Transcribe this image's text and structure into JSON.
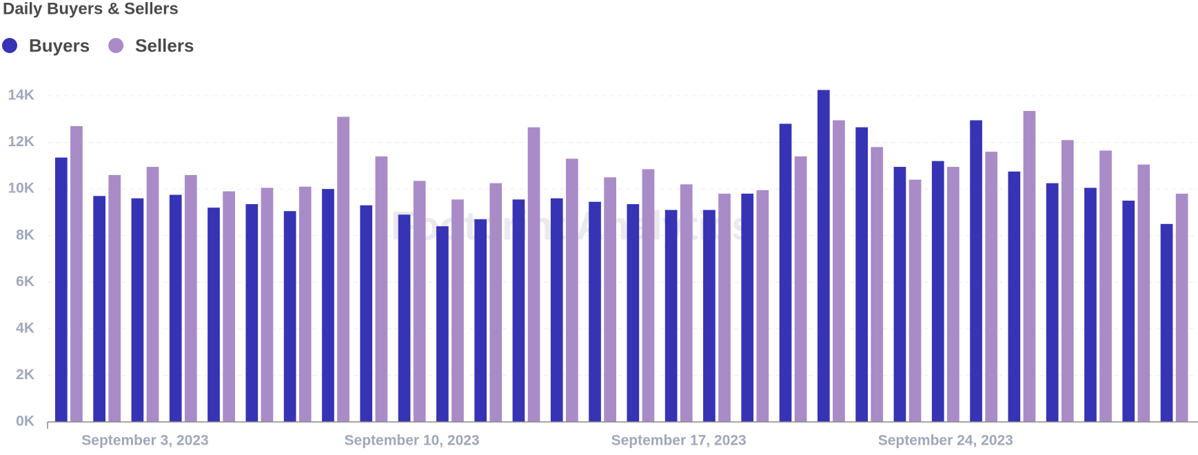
{
  "chart_data": {
    "type": "bar",
    "title": "Daily Buyers & Sellers",
    "watermark": "Footprint Analytics",
    "categories": [
      null,
      null,
      "September 3, 2023",
      null,
      null,
      null,
      null,
      null,
      null,
      "September 10, 2023",
      null,
      null,
      null,
      null,
      null,
      null,
      "September 17, 2023",
      null,
      null,
      null,
      null,
      null,
      null,
      "September 24, 2023",
      null,
      null,
      null,
      null,
      null,
      null
    ],
    "series": [
      {
        "name": "Buyers",
        "color": "#3633b5",
        "values": [
          11350,
          9700,
          9600,
          9750,
          9200,
          9350,
          9050,
          10000,
          9300,
          8900,
          8400,
          8700,
          9550,
          9600,
          9450,
          9350,
          9100,
          9100,
          9800,
          12800,
          14250,
          12650,
          10950,
          11200,
          12950,
          10750,
          10250,
          10050,
          9500,
          8500
        ]
      },
      {
        "name": "Sellers",
        "color": "#a98bc8",
        "values": [
          12700,
          10600,
          10950,
          10600,
          9900,
          10050,
          10100,
          13100,
          11400,
          10350,
          9550,
          10250,
          12650,
          11300,
          10500,
          10850,
          10200,
          9800,
          9950,
          11400,
          12950,
          11800,
          10400,
          10950,
          11600,
          13350,
          12100,
          11650,
          11050,
          9800
        ]
      }
    ],
    "ylim": [
      0,
      14000
    ],
    "yticks": [
      {
        "value": 0,
        "label": "0K"
      },
      {
        "value": 2000,
        "label": "2K"
      },
      {
        "value": 4000,
        "label": "4K"
      },
      {
        "value": 6000,
        "label": "6K"
      },
      {
        "value": 8000,
        "label": "8K"
      },
      {
        "value": 10000,
        "label": "10K"
      },
      {
        "value": 12000,
        "label": "12K"
      },
      {
        "value": 14000,
        "label": "14K"
      }
    ],
    "grid": true
  }
}
